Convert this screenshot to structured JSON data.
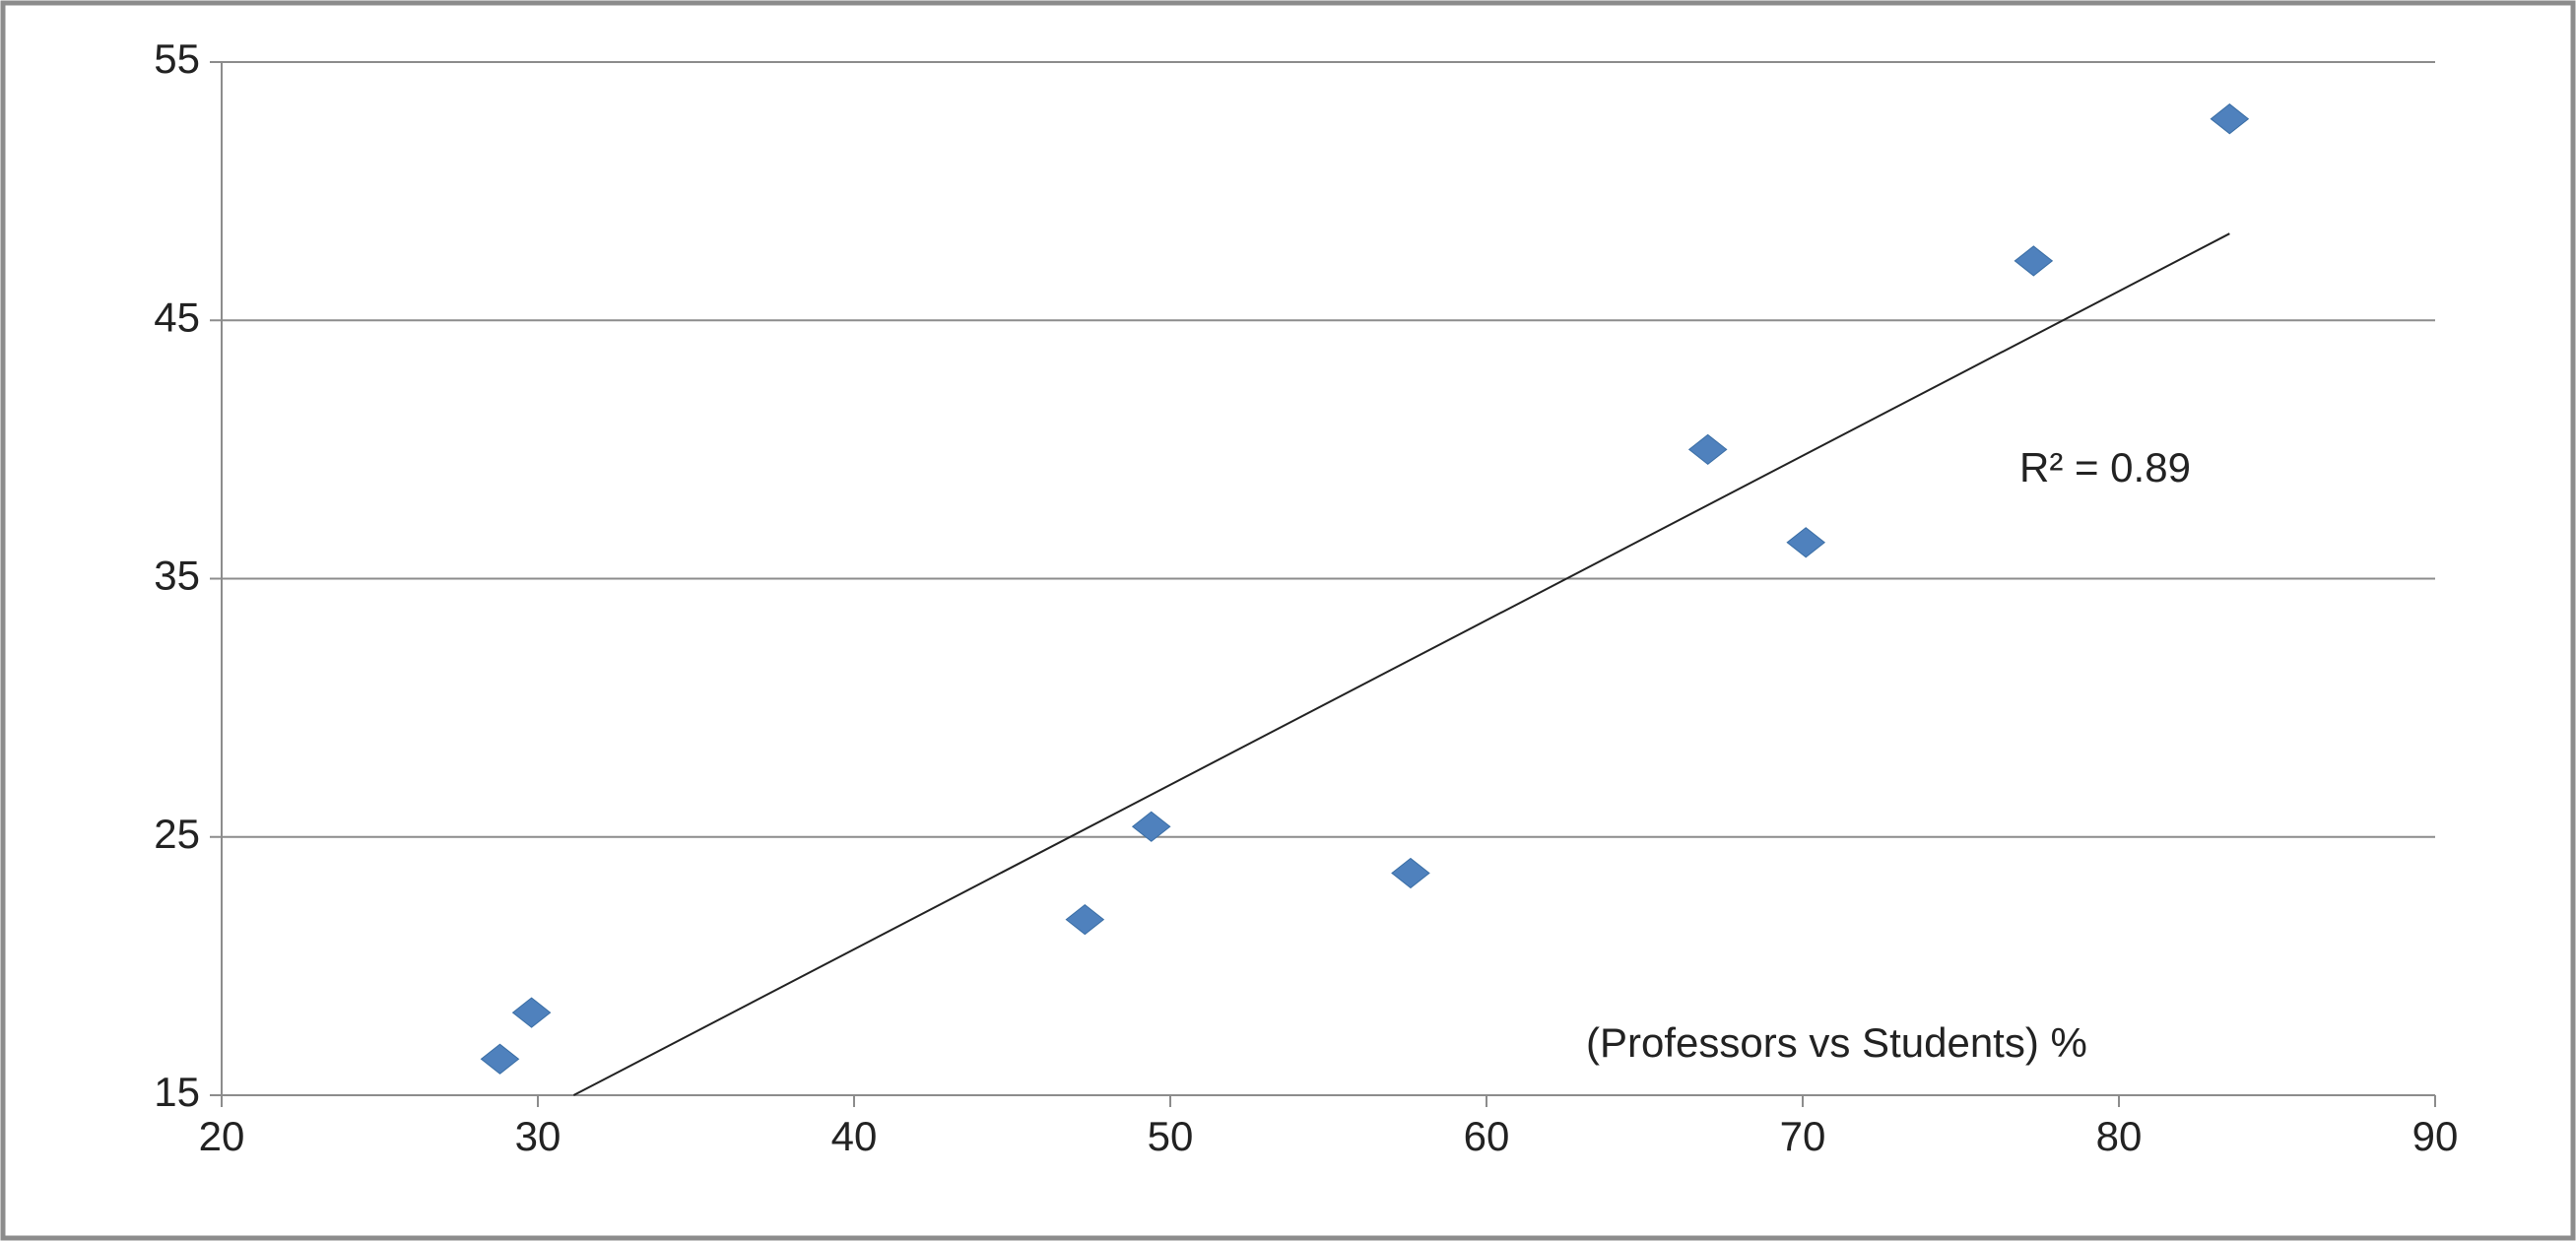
{
  "chart_data": {
    "type": "scatter",
    "x": [
      28.8,
      29.8,
      47.3,
      49.4,
      57.6,
      67.0,
      70.1,
      77.3,
      83.5
    ],
    "values": [
      16.4,
      18.2,
      21.8,
      25.4,
      23.6,
      40.0,
      36.4,
      47.3,
      52.8
    ],
    "color": "#4f81bd",
    "xlim": [
      20,
      90
    ],
    "xticks": [
      20,
      30,
      40,
      50,
      60,
      70,
      80,
      90
    ],
    "ylim": [
      15,
      55
    ],
    "yticks": [
      15,
      25,
      35,
      45,
      55
    ],
    "grid": true,
    "trendline": true,
    "annotations": [
      "R² = 0.89",
      "(Professors vs Students) %"
    ]
  }
}
